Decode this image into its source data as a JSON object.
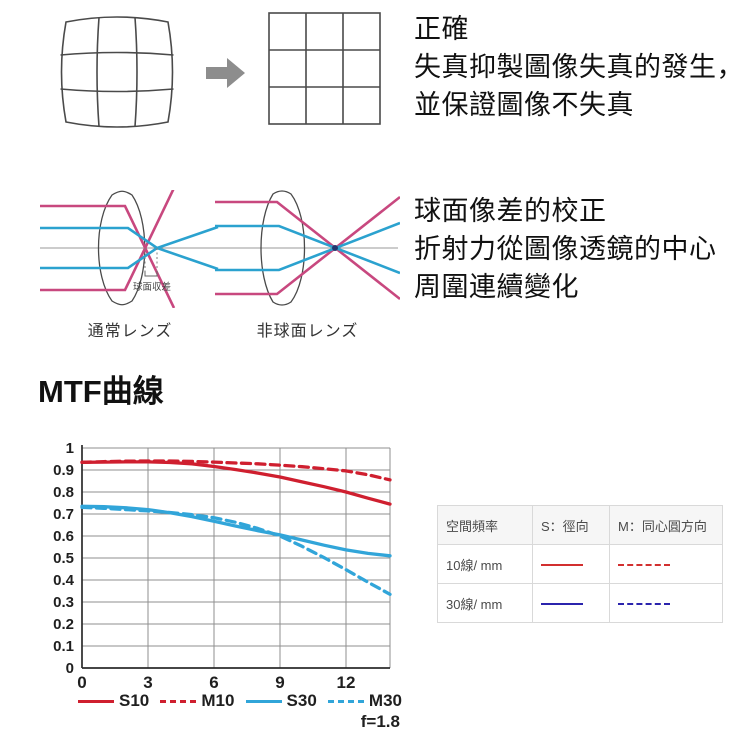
{
  "distortion_section": {
    "heading": "正確",
    "lines": [
      "失真抑製圖像失真的發生，",
      "並保證圖像不失真"
    ]
  },
  "aberration_section": {
    "heading": "球面像差的校正",
    "lines": [
      "折射力從圖像透鏡的中心",
      "周圍連續變化"
    ],
    "normal_lens_label": "通常レンズ",
    "aspherical_lens_label": "非球面レンズ",
    "aberration_label": "球面収差"
  },
  "mtf_section": {
    "title": "MTF曲線",
    "aperture_label": "f=1.8",
    "legend": [
      {
        "label": "S10",
        "sample": {
          "color": "#cf1f2f",
          "dash": false,
          "thickness": 3
        }
      },
      {
        "label": "M10",
        "sample": {
          "color": "#cf1f2f",
          "dash": true,
          "thickness": 3
        }
      },
      {
        "label": "S30",
        "sample": {
          "color": "#31a5d9",
          "dash": false,
          "thickness": 3
        }
      },
      {
        "label": "M30",
        "sample": {
          "color": "#31a5d9",
          "dash": true,
          "thickness": 3
        }
      }
    ],
    "table": {
      "headers": [
        "空間頻率",
        "S：徑向",
        "M：同心圓方向"
      ],
      "rows": [
        {
          "label": "10線/ mm",
          "s_sample": {
            "color": "#d22f2f",
            "dash": false,
            "thickness": 2
          },
          "m_sample": {
            "color": "#d22f2f",
            "dash": true,
            "thickness": 2
          }
        },
        {
          "label": "30線/ mm",
          "s_sample": {
            "color": "#2b24ad",
            "dash": false,
            "thickness": 2
          },
          "m_sample": {
            "color": "#2b24ad",
            "dash": true,
            "thickness": 2
          }
        }
      ]
    }
  },
  "chart_data": {
    "type": "line",
    "title": "MTF曲線",
    "xlabel": "",
    "ylabel": "",
    "xlim": [
      0,
      14
    ],
    "ylim": [
      0,
      1
    ],
    "x_ticks": [
      0,
      3,
      6,
      9,
      12
    ],
    "y_ticks": [
      0,
      0.1,
      0.2,
      0.3,
      0.4,
      0.5,
      0.6,
      0.7,
      0.8,
      0.9,
      1
    ],
    "grid": true,
    "legend_position": "bottom",
    "annotation": "f=1.8",
    "x": [
      0,
      1,
      2,
      3,
      4,
      5,
      6,
      7,
      8,
      9,
      10,
      11,
      12,
      13,
      14
    ],
    "series": [
      {
        "name": "S10",
        "color": "#cf1f2f",
        "style": "solid",
        "values": [
          0.935,
          0.936,
          0.937,
          0.937,
          0.934,
          0.928,
          0.916,
          0.902,
          0.886,
          0.868,
          0.846,
          0.824,
          0.8,
          0.772,
          0.745
        ]
      },
      {
        "name": "M10",
        "color": "#cf1f2f",
        "style": "dashed",
        "values": [
          0.935,
          0.938,
          0.94,
          0.941,
          0.941,
          0.939,
          0.936,
          0.932,
          0.928,
          0.922,
          0.915,
          0.906,
          0.896,
          0.878,
          0.855
        ]
      },
      {
        "name": "S30",
        "color": "#31a5d9",
        "style": "solid",
        "values": [
          0.735,
          0.733,
          0.728,
          0.72,
          0.706,
          0.688,
          0.667,
          0.645,
          0.624,
          0.605,
          0.582,
          0.558,
          0.537,
          0.521,
          0.51
        ]
      },
      {
        "name": "M30",
        "color": "#31a5d9",
        "style": "dashed",
        "values": [
          0.73,
          0.726,
          0.72,
          0.714,
          0.707,
          0.697,
          0.683,
          0.662,
          0.634,
          0.6,
          0.553,
          0.502,
          0.447,
          0.39,
          0.335
        ]
      }
    ]
  }
}
